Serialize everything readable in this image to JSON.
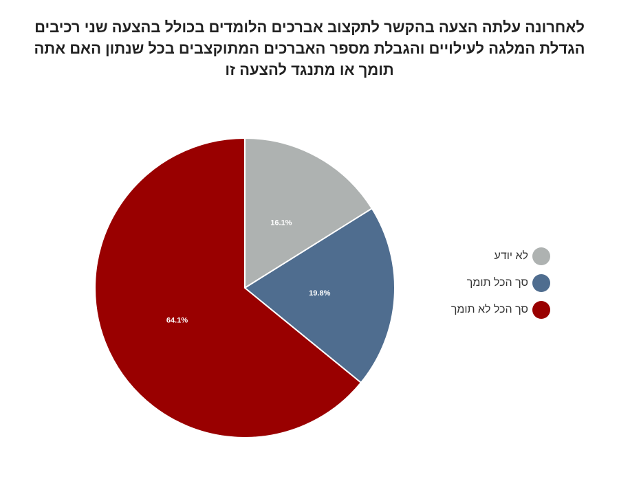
{
  "chart_data": {
    "type": "pie",
    "title_lines": [
      "לאחרונה עלתה הצעה בהקשר לתקצוב אברכים הלומדים בכולל בהצעה שני רכיבים",
      "הגדלת המלגה לעילויים והגבלת מספר האברכים המתוקצבים בכל שנתון האם אתה",
      "תומך או מתנגד להצעה זו"
    ],
    "slices": [
      {
        "label": "לא יודע",
        "value": 16.1,
        "value_label": "16.1%",
        "color": "#aeb2b1"
      },
      {
        "label": "סך הכל תומך",
        "value": 19.8,
        "value_label": "19.8%",
        "color": "#4f6d8f"
      },
      {
        "label": "סך הכל לא תומך",
        "value": 64.1,
        "value_label": "64.1%",
        "color": "#990000"
      }
    ],
    "start_angle_deg": 0,
    "direction": "clockwise",
    "legend_position": "right"
  }
}
